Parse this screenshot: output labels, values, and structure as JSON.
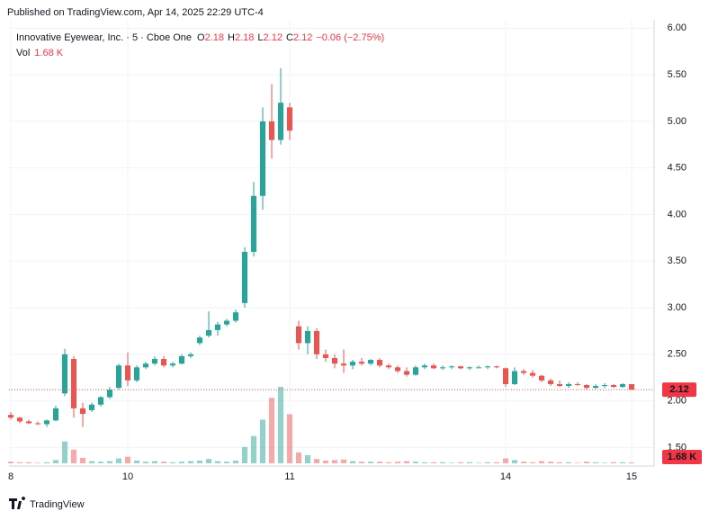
{
  "header": {
    "published": "Published on TradingView.com, Apr 14, 2025 22:29 UTC-4",
    "symbol": "Innovative Eyewear, Inc. · 5 · Cboe One",
    "o": "O",
    "h": "H",
    "l": "L",
    "c": "C",
    "change": "−0.06 (−2.75%)",
    "vol": "Vol",
    "vol_value": "1.68 K"
  },
  "footer": {
    "brand": "TradingView"
  },
  "chart_data": {
    "type": "candlestick",
    "categories": [
      "8",
      null,
      null,
      null,
      null,
      null,
      null,
      null,
      null,
      null,
      null,
      null,
      null,
      "10",
      null,
      null,
      null,
      null,
      null,
      null,
      null,
      null,
      null,
      null,
      null,
      null,
      null,
      null,
      null,
      null,
      null,
      "11",
      null,
      null,
      null,
      null,
      null,
      null,
      null,
      null,
      null,
      null,
      null,
      null,
      null,
      null,
      null,
      null,
      null,
      null,
      null,
      null,
      null,
      null,
      null,
      "14",
      null,
      null,
      null,
      null,
      null,
      null,
      null,
      null,
      null,
      null,
      null,
      null,
      null,
      "15"
    ],
    "open": [
      1.85,
      1.82,
      1.78,
      1.76,
      1.75,
      1.79,
      2.08,
      2.45,
      1.92,
      1.9,
      1.96,
      2.04,
      2.14,
      2.38,
      2.22,
      2.36,
      2.4,
      2.45,
      2.38,
      2.4,
      2.48,
      2.62,
      2.7,
      2.76,
      2.82,
      2.86,
      3.05,
      3.6,
      4.2,
      5.0,
      4.8,
      5.15,
      2.8,
      2.62,
      2.75,
      2.5,
      2.46,
      2.4,
      2.38,
      2.42,
      2.4,
      2.44,
      2.38,
      2.36,
      2.32,
      2.28,
      2.36,
      2.38,
      2.35,
      2.36,
      2.37,
      2.35,
      2.36,
      2.36,
      2.37,
      2.35,
      2.18,
      2.32,
      2.3,
      2.27,
      2.22,
      2.18,
      2.16,
      2.18,
      2.17,
      2.14,
      2.16,
      2.17,
      2.15,
      2.18
    ],
    "high": [
      1.88,
      1.83,
      1.8,
      1.78,
      1.8,
      1.95,
      2.56,
      2.48,
      1.98,
      1.98,
      2.05,
      2.15,
      2.4,
      2.52,
      2.38,
      2.42,
      2.48,
      2.48,
      2.42,
      2.5,
      2.52,
      2.7,
      2.96,
      2.85,
      2.88,
      2.98,
      3.65,
      4.35,
      5.15,
      5.4,
      5.57,
      5.2,
      2.86,
      2.8,
      2.78,
      2.55,
      2.5,
      2.55,
      2.44,
      2.46,
      2.45,
      2.46,
      2.4,
      2.38,
      2.36,
      2.38,
      2.4,
      2.4,
      2.38,
      2.38,
      2.38,
      2.37,
      2.38,
      2.38,
      2.38,
      2.36,
      2.36,
      2.34,
      2.33,
      2.28,
      2.24,
      2.22,
      2.2,
      2.2,
      2.18,
      2.18,
      2.19,
      2.18,
      2.19,
      2.18
    ],
    "low": [
      1.8,
      1.76,
      1.75,
      1.74,
      1.72,
      1.78,
      2.05,
      1.82,
      1.72,
      1.88,
      1.94,
      2.02,
      2.12,
      2.16,
      2.2,
      2.34,
      2.38,
      2.36,
      2.36,
      2.39,
      2.46,
      2.6,
      2.68,
      2.7,
      2.8,
      2.84,
      3.0,
      3.55,
      4.05,
      4.6,
      4.75,
      4.8,
      2.55,
      2.5,
      2.45,
      2.42,
      2.35,
      2.3,
      2.34,
      2.38,
      2.38,
      2.36,
      2.34,
      2.3,
      2.26,
      2.27,
      2.34,
      2.34,
      2.33,
      2.34,
      2.34,
      2.33,
      2.35,
      2.34,
      2.35,
      2.15,
      2.17,
      2.28,
      2.25,
      2.2,
      2.16,
      2.15,
      2.14,
      2.16,
      2.12,
      2.13,
      2.14,
      2.14,
      2.14,
      2.12
    ],
    "close": [
      1.82,
      1.78,
      1.76,
      1.75,
      1.79,
      1.92,
      2.5,
      1.92,
      1.86,
      1.96,
      2.04,
      2.12,
      2.38,
      2.22,
      2.36,
      2.4,
      2.45,
      2.38,
      2.4,
      2.48,
      2.5,
      2.68,
      2.76,
      2.82,
      2.86,
      2.95,
      3.6,
      4.2,
      5.0,
      4.8,
      5.2,
      4.9,
      2.62,
      2.75,
      2.5,
      2.46,
      2.4,
      2.38,
      2.42,
      2.4,
      2.44,
      2.38,
      2.36,
      2.32,
      2.28,
      2.36,
      2.38,
      2.35,
      2.36,
      2.37,
      2.35,
      2.36,
      2.36,
      2.37,
      2.36,
      2.18,
      2.32,
      2.3,
      2.27,
      2.22,
      2.18,
      2.16,
      2.18,
      2.17,
      2.14,
      2.16,
      2.17,
      2.15,
      2.18,
      2.12
    ],
    "volume": [
      3,
      2,
      2,
      1,
      2,
      6,
      40,
      25,
      10,
      4,
      3,
      4,
      9,
      12,
      5,
      3,
      4,
      3,
      2,
      3,
      4,
      5,
      8,
      4,
      3,
      5,
      30,
      50,
      80,
      120,
      140,
      90,
      20,
      15,
      8,
      5,
      6,
      7,
      4,
      3,
      3,
      3,
      2,
      3,
      4,
      3,
      2,
      2,
      2,
      1,
      2,
      2,
      1,
      2,
      2,
      9,
      6,
      3,
      2,
      4,
      3,
      2,
      2,
      1,
      3,
      2,
      1,
      2,
      2,
      1.68
    ],
    "ylim": [
      1.33,
      6.09
    ],
    "yticks": [
      {
        "value": 1.5,
        "label": "1.50"
      },
      {
        "value": 2,
        "label": "2.00"
      },
      {
        "value": 2.5,
        "label": "2.50"
      },
      {
        "value": 3,
        "label": "3.00"
      },
      {
        "value": 3.5,
        "label": "3.50"
      },
      {
        "value": 4,
        "label": "4.00"
      },
      {
        "value": 4.5,
        "label": "4.50"
      },
      {
        "value": 5,
        "label": "5.00"
      },
      {
        "value": 5.5,
        "label": "5.50"
      },
      {
        "value": 6,
        "label": "6.00"
      }
    ],
    "up_color": "#26a69a",
    "down_color": "#ef5350",
    "grid": true
  }
}
